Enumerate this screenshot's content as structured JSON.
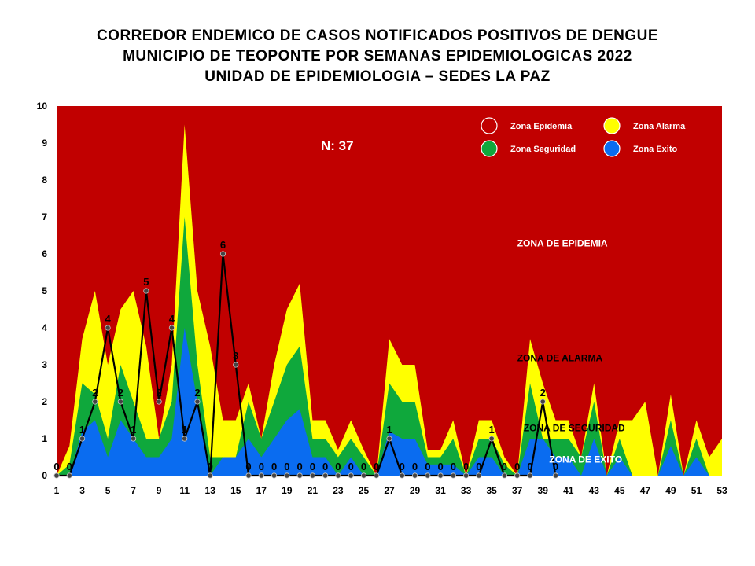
{
  "header": {
    "line1": "CORREDOR ENDEMICO DE CASOS NOTIFICADOS POSITIVOS DE DENGUE",
    "line2": "MUNICIPIO DE TEOPONTE  POR SEMANAS EPIDEMIOLOGICAS 2022",
    "line3": "UNIDAD DE EPIDEMIOLOGIA – SEDES LA PAZ"
  },
  "chart_data": {
    "type": "area",
    "title": "CORREDOR ENDEMICO DE CASOS NOTIFICADOS POSITIVOS DE DENGUE MUNICIPIO DE TEOPONTE  POR SEMANAS EPIDEMIOLOGICAS 2022",
    "xlabel": "",
    "ylabel": "",
    "xlim": [
      1,
      53
    ],
    "ylim": [
      0,
      10
    ],
    "x_ticks": [
      1,
      3,
      5,
      7,
      9,
      11,
      13,
      15,
      17,
      19,
      21,
      23,
      25,
      27,
      29,
      31,
      33,
      35,
      37,
      39,
      41,
      43,
      45,
      47,
      49,
      51,
      53
    ],
    "y_ticks": [
      0,
      1,
      2,
      3,
      4,
      5,
      6,
      7,
      8,
      9,
      10
    ],
    "x": [
      1,
      2,
      3,
      4,
      5,
      6,
      7,
      8,
      9,
      10,
      11,
      12,
      13,
      14,
      15,
      16,
      17,
      18,
      19,
      20,
      21,
      22,
      23,
      24,
      25,
      26,
      27,
      28,
      29,
      30,
      31,
      32,
      33,
      34,
      35,
      36,
      37,
      38,
      39,
      40,
      41,
      42,
      43,
      44,
      45,
      46,
      47,
      48,
      49,
      50,
      51,
      52,
      53
    ],
    "zones": [
      {
        "name": "Zona Exito",
        "color": "#0a6cf0",
        "values": [
          0,
          0,
          1.2,
          1.5,
          0.5,
          1.5,
          1,
          0.5,
          0.5,
          1,
          4,
          2,
          0,
          0.5,
          0.5,
          1,
          0.5,
          1,
          1.5,
          1.8,
          0.5,
          0.5,
          0,
          0.5,
          0,
          0,
          1.2,
          1,
          1,
          0.3,
          0.3,
          0.3,
          0,
          0.5,
          0.5,
          0,
          0,
          1,
          1,
          0.5,
          0.5,
          0,
          1,
          0,
          0.5,
          0,
          0,
          0,
          0.8,
          0,
          0.5,
          0,
          0
        ]
      },
      {
        "name": "Zona Seguridad",
        "color": "#0fa83c",
        "values": [
          0,
          0.3,
          2.5,
          2.2,
          1,
          3,
          2,
          1,
          1,
          2,
          7,
          3,
          0.5,
          0.5,
          0.5,
          2,
          1,
          2,
          3,
          3.5,
          1,
          1,
          0.5,
          1,
          0.5,
          0,
          2.5,
          2,
          2,
          0.5,
          0.5,
          1,
          0,
          1,
          1,
          0.3,
          0,
          2.5,
          1,
          1,
          1,
          0.5,
          2,
          0,
          1,
          0,
          0,
          0,
          1.5,
          0,
          1,
          0,
          0
        ]
      },
      {
        "name": "Zona Alarma",
        "color": "#ffff00",
        "values": [
          0,
          0.8,
          3.7,
          5,
          3,
          4.5,
          5,
          3.5,
          1,
          3,
          9.5,
          5,
          3.5,
          1.5,
          1.5,
          2.5,
          1,
          3,
          4.5,
          5.2,
          1.5,
          1.5,
          0.7,
          1.5,
          0.7,
          0,
          3.7,
          3,
          3,
          0.7,
          0.7,
          1.5,
          0,
          1.5,
          1.5,
          0.5,
          0,
          3.7,
          2.5,
          1.5,
          1.5,
          0.5,
          2.5,
          0,
          1.5,
          1.5,
          2,
          0,
          2.2,
          0,
          1.5,
          0.5,
          1
        ]
      },
      {
        "name": "Zona Epidemia",
        "color": "#c10000",
        "values": [
          10,
          10,
          10,
          10,
          10,
          10,
          10,
          10,
          10,
          10,
          10,
          10,
          10,
          10,
          10,
          10,
          10,
          10,
          10,
          10,
          10,
          10,
          10,
          10,
          10,
          10,
          10,
          10,
          10,
          10,
          10,
          10,
          10,
          10,
          10,
          10,
          10,
          10,
          10,
          10,
          10,
          10,
          10,
          10,
          10,
          10,
          10,
          10,
          10,
          10,
          10,
          10,
          10
        ]
      }
    ],
    "series": [
      {
        "name": "",
        "color": "#000000",
        "x": [
          1,
          2,
          3,
          4,
          5,
          6,
          7,
          8,
          9,
          10,
          11,
          12,
          13,
          14,
          15,
          16,
          17,
          18,
          19,
          20,
          21,
          22,
          23,
          24,
          25,
          26,
          27,
          28,
          29,
          30,
          31,
          32,
          33,
          34,
          35,
          36,
          37,
          38,
          39,
          40
        ],
        "values": [
          0,
          0,
          1,
          2,
          4,
          2,
          1,
          5,
          2,
          4,
          1,
          2,
          0,
          6,
          3,
          0,
          0,
          0,
          0,
          0,
          0,
          0,
          0,
          0,
          0,
          0,
          1,
          0,
          0,
          0,
          0,
          0,
          0,
          0,
          1,
          0,
          0,
          0,
          2,
          0
        ]
      }
    ],
    "legend": {
      "placement": "top-right",
      "items": [
        {
          "label": "Zona Epidemia",
          "color": "#c10000"
        },
        {
          "label": "Zona Alarma",
          "color": "#ffff00"
        },
        {
          "label": "Zona Seguridad",
          "color": "#0fa83c"
        },
        {
          "label": "Zona Exito",
          "color": "#0a6cf0"
        }
      ]
    },
    "annotations": {
      "total": "N: 37",
      "zone_labels": [
        {
          "text": "ZONA DE EPIDEMIA",
          "x": 37,
          "y": 6.2,
          "color": "#ffffff"
        },
        {
          "text": "ZONA DE ALARMA",
          "x": 37,
          "y": 3.1,
          "color": "#000000"
        },
        {
          "text": "ZONA DE  SEGURIDAD",
          "x": 37.5,
          "y": 1.2,
          "color": "#000000"
        },
        {
          "text": "ZONA DE  EXITO",
          "x": 39.5,
          "y": 0.35,
          "color": "#ffffff"
        }
      ]
    },
    "grid": false
  }
}
